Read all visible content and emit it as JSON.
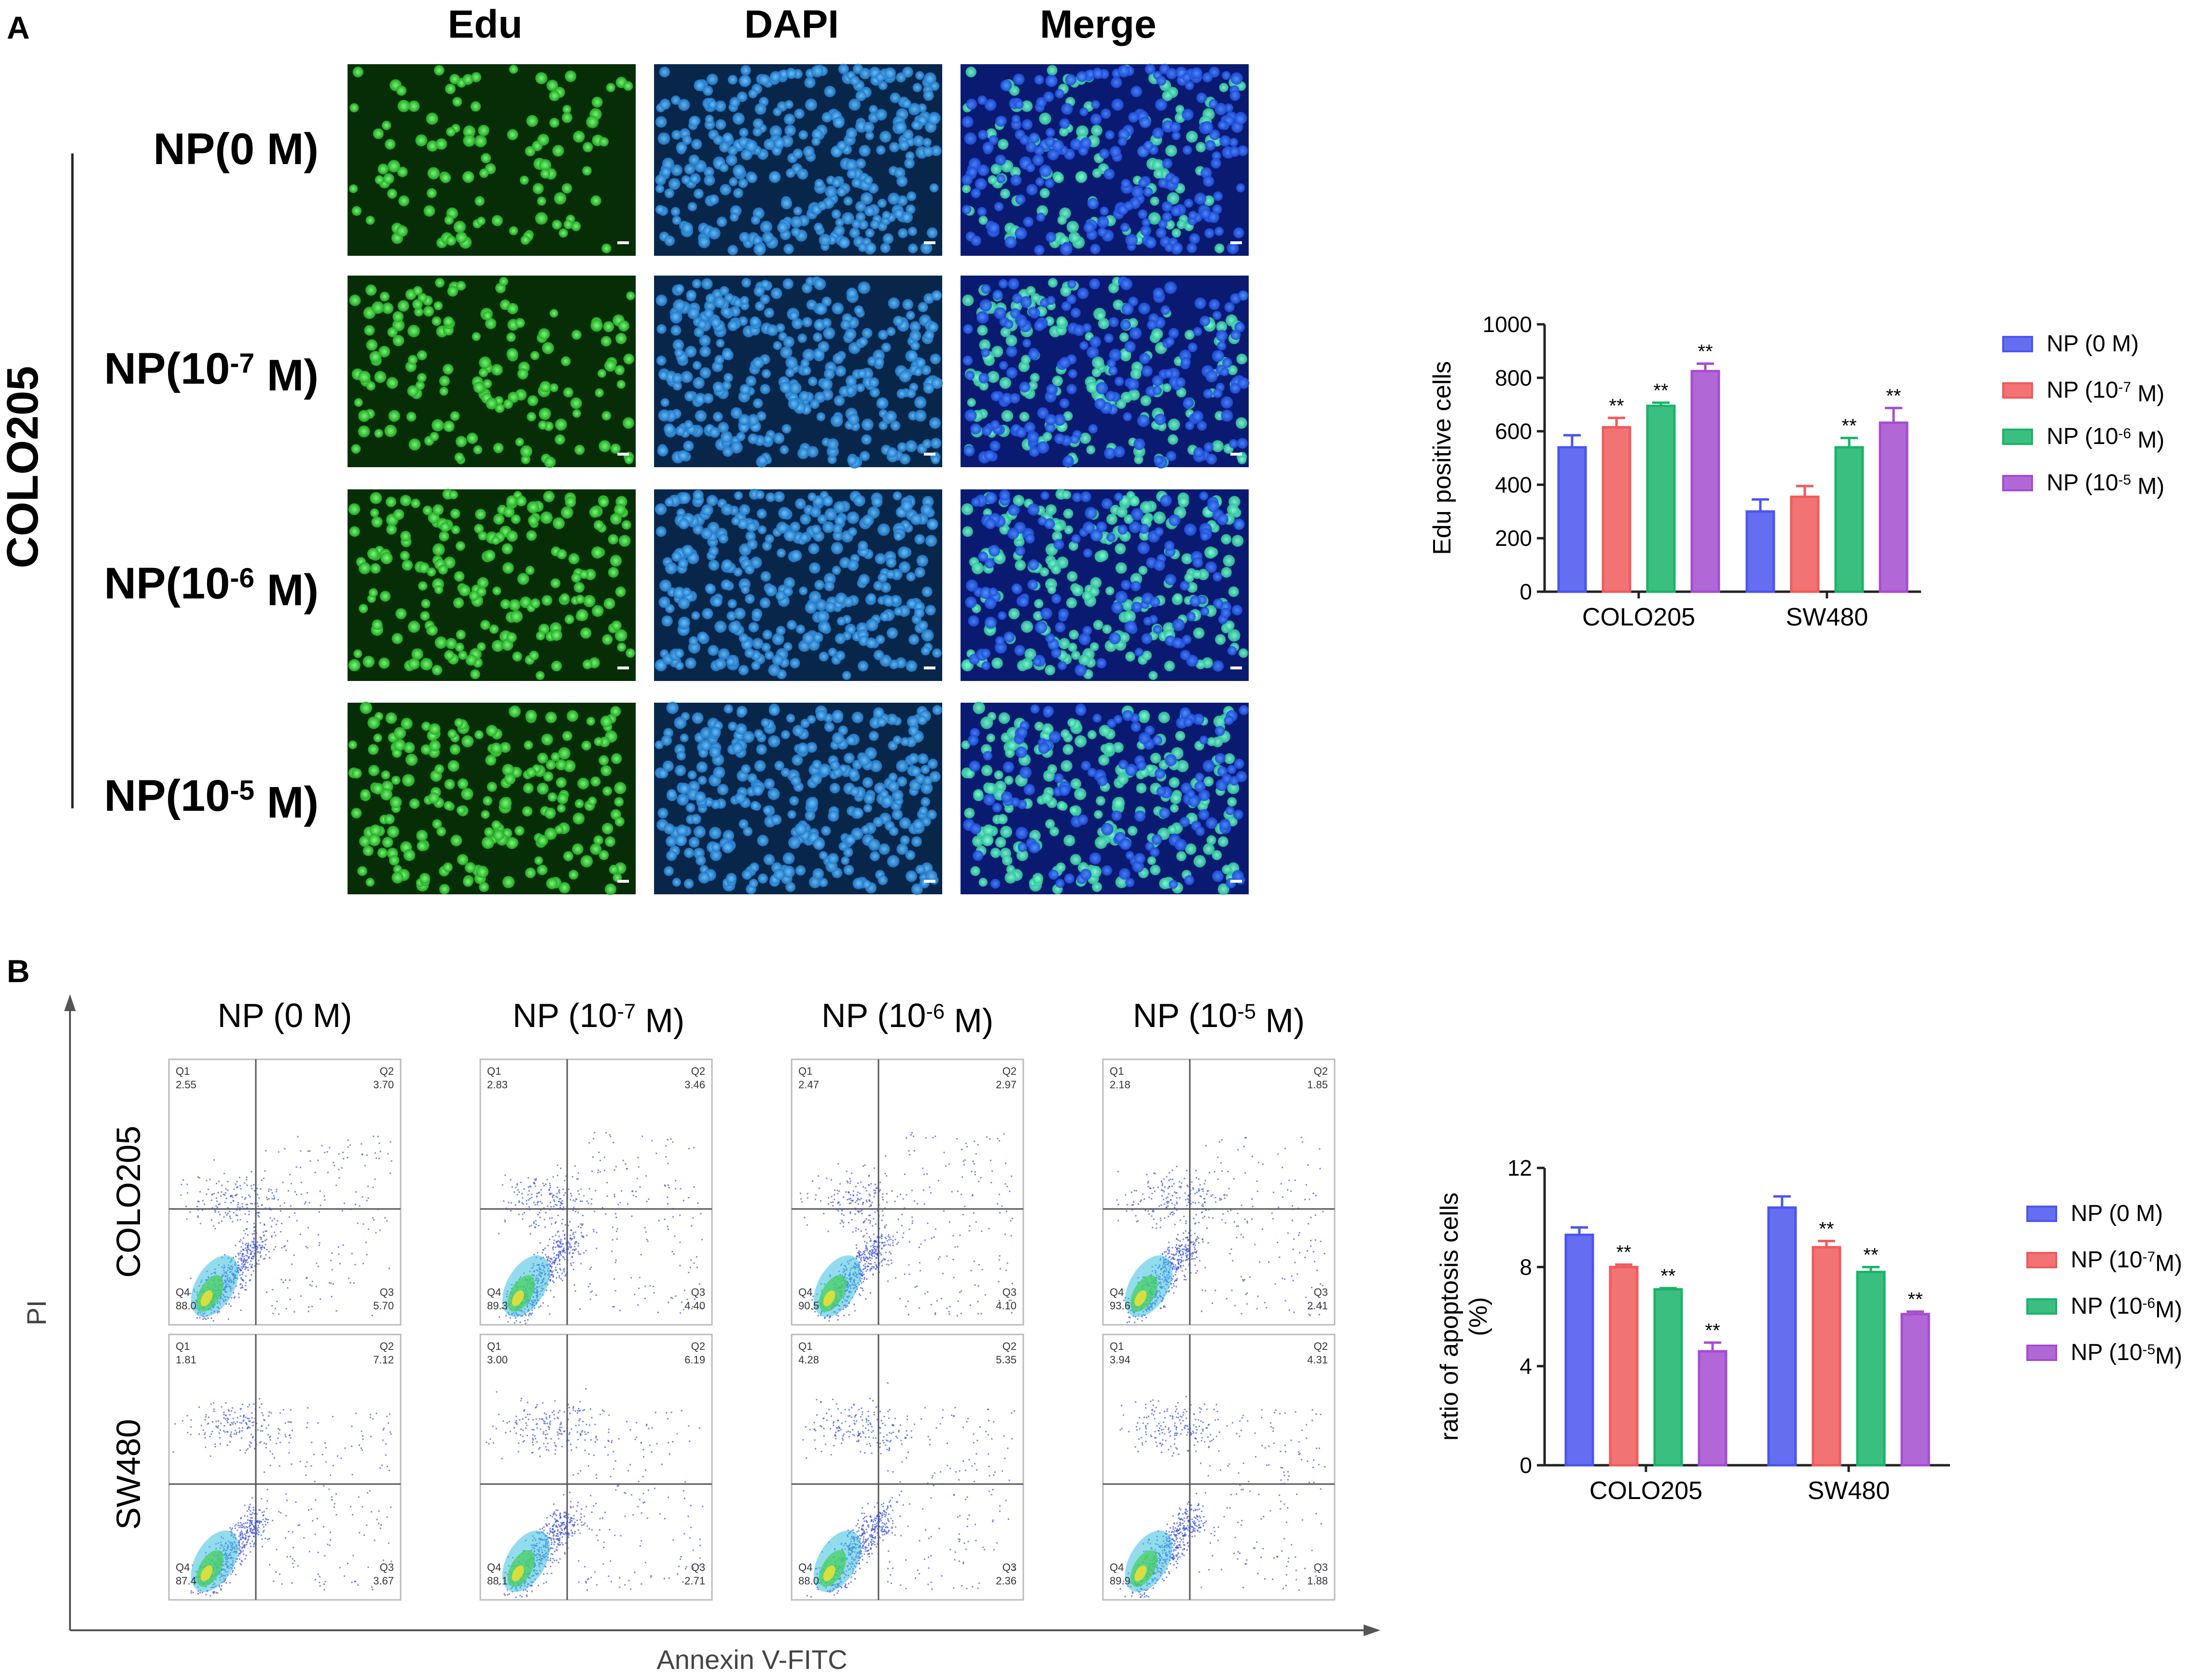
{
  "panelA": {
    "letter": "A",
    "columns": [
      "Edu",
      "DAPI",
      "Merge"
    ],
    "cell_line": "COLO205",
    "rows": [
      {
        "prefix": "NP(",
        "exp": "",
        "suffix": "0 M)"
      },
      {
        "prefix": "NP(10",
        "exp": "-7",
        "suffix": " M)"
      },
      {
        "prefix": "NP(10",
        "exp": "-6",
        "suffix": " M)"
      },
      {
        "prefix": "NP(10",
        "exp": "-5",
        "suffix": " M)"
      }
    ]
  },
  "panelB": {
    "letter": "B",
    "columns": [
      {
        "prefix": "NP (",
        "exp": "",
        "suffix": "0 M)"
      },
      {
        "prefix": "NP (10",
        "exp": "-7",
        "suffix": " M)"
      },
      {
        "prefix": "NP (10",
        "exp": "-6",
        "suffix": " M)"
      },
      {
        "prefix": "NP (10",
        "exp": "-5",
        "suffix": " M)"
      }
    ],
    "rows": [
      "COLO205",
      "SW480"
    ],
    "y_axis": "PI",
    "x_axis": "Annexin V-FITC",
    "quadrant_names": [
      "Q1",
      "Q2",
      "Q3",
      "Q4"
    ],
    "quadrants": [
      [
        {
          "Q1": "2.55",
          "Q2": "3.70",
          "Q3": "5.70",
          "Q4": "88.0"
        },
        {
          "Q1": "2.83",
          "Q2": "3.46",
          "Q3": "4.40",
          "Q4": "89.3"
        },
        {
          "Q1": "2.47",
          "Q2": "2.97",
          "Q3": "4.10",
          "Q4": "90.5"
        },
        {
          "Q1": "2.18",
          "Q2": "1.85",
          "Q3": "2.41",
          "Q4": "93.6"
        }
      ],
      [
        {
          "Q1": "1.81",
          "Q2": "7.12",
          "Q3": "3.67",
          "Q4": "87.4"
        },
        {
          "Q1": "3.00",
          "Q2": "6.19",
          "Q3": "2.71",
          "Q4": "88.1"
        },
        {
          "Q1": "4.28",
          "Q2": "5.35",
          "Q3": "2.36",
          "Q4": "88.0"
        },
        {
          "Q1": "3.94",
          "Q2": "4.31",
          "Q3": "1.88",
          "Q4": "89.9"
        }
      ]
    ]
  },
  "colors": {
    "blue": "#4a55ee",
    "red": "#f05a5a",
    "green": "#19b46a",
    "purple": "#a44cd0",
    "edu_bg": "#062d06",
    "edu_cell": "#3cd23c",
    "dapi_bg": "#08264a",
    "dapi_cell": "#2f93dc",
    "merge_bg": "#0a1a70",
    "merge_cell": "#2a66ea",
    "merge_green": "#3ad0b0"
  },
  "chart_data": [
    {
      "type": "bar",
      "ylabel": "Edu positive cells",
      "categories": [
        "COLO205",
        "SW480"
      ],
      "ylim": [
        0,
        1000
      ],
      "yticks": [
        "0",
        "200",
        "400",
        "600",
        "800",
        "1000"
      ],
      "series": [
        {
          "name": "NP (0 M)",
          "legend": {
            "prefix": "NP (",
            "exp": "",
            "suffix": "0 M)"
          },
          "values": [
            540,
            300
          ],
          "errors": [
            45,
            45
          ],
          "stars": [
            "",
            ""
          ]
        },
        {
          "name": "NP (10-7 M)",
          "legend": {
            "prefix": "NP (10",
            "exp": "-7",
            "suffix": " M)"
          },
          "values": [
            615,
            355
          ],
          "errors": [
            35,
            40
          ],
          "stars": [
            "**",
            ""
          ]
        },
        {
          "name": "NP (10-6 M)",
          "legend": {
            "prefix": "NP (10",
            "exp": "-6",
            "suffix": " M)"
          },
          "values": [
            695,
            540
          ],
          "errors": [
            12,
            35
          ],
          "stars": [
            "**",
            "**"
          ]
        },
        {
          "name": "NP (10-5 M)",
          "legend": {
            "prefix": "NP (10",
            "exp": "-5",
            "suffix": " M)"
          },
          "values": [
            825,
            632
          ],
          "errors": [
            28,
            55
          ],
          "stars": [
            "**",
            "**"
          ]
        }
      ]
    },
    {
      "type": "bar",
      "ylabel": [
        "ratio of apoptosis cells",
        "(%)"
      ],
      "categories": [
        "COLO205",
        "SW480"
      ],
      "ylim": [
        0,
        12
      ],
      "yticks": [
        "0",
        "4",
        "8",
        "12"
      ],
      "series": [
        {
          "name": "NP (0 M)",
          "legend": {
            "prefix": "NP (",
            "exp": "",
            "suffix": "0 M)"
          },
          "values": [
            9.3,
            10.4
          ],
          "errors": [
            0.3,
            0.45
          ],
          "stars": [
            "",
            ""
          ]
        },
        {
          "name": "NP (10-7M)",
          "legend": {
            "prefix": "NP (10",
            "exp": "-7",
            "suffix": "M)"
          },
          "values": [
            8.0,
            8.8
          ],
          "errors": [
            0.1,
            0.25
          ],
          "stars": [
            "**",
            "**"
          ]
        },
        {
          "name": "NP (10-6M)",
          "legend": {
            "prefix": "NP (10",
            "exp": "-6",
            "suffix": "M)"
          },
          "values": [
            7.1,
            7.8
          ],
          "errors": [
            0.05,
            0.2
          ],
          "stars": [
            "**",
            "**"
          ]
        },
        {
          "name": "NP (10-5M)",
          "legend": {
            "prefix": "NP (10",
            "exp": "-5",
            "suffix": "M)"
          },
          "values": [
            4.6,
            6.1
          ],
          "errors": [
            0.35,
            0.1
          ],
          "stars": [
            "**",
            "**"
          ]
        }
      ]
    }
  ]
}
